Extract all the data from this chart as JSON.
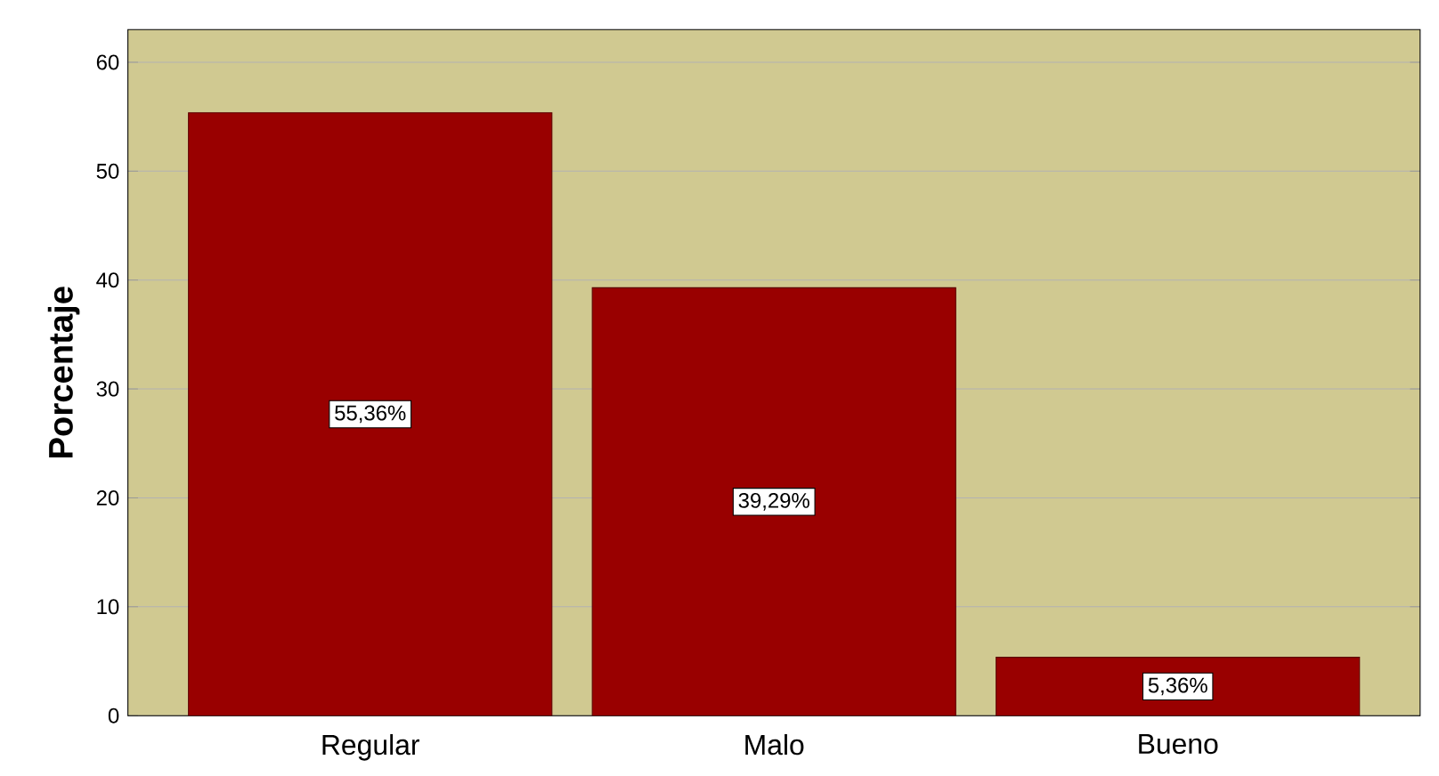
{
  "chart_data": {
    "type": "bar",
    "ylabel": "Porcentaje",
    "categories": [
      "Regular",
      "Malo",
      "Bueno"
    ],
    "values": [
      55.36,
      39.29,
      5.36
    ],
    "color": "#990000",
    "value_labels": [
      "55,36%",
      "39,29%",
      "5,36%"
    ],
    "ylim": [
      0,
      63
    ],
    "yticks": [
      0,
      10,
      20,
      30,
      40,
      50,
      60
    ],
    "grid": "y"
  }
}
